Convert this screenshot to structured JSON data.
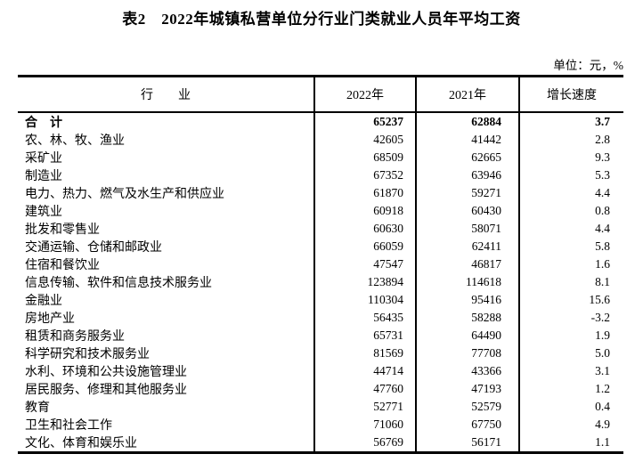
{
  "title": "表2　2022年城镇私营单位分行业门类就业人员年平均工资",
  "unit_note": "单位：元，%",
  "colors": {
    "text": "#000000",
    "border": "#000000",
    "background": "#ffffff"
  },
  "table": {
    "columns": [
      "行　　业",
      "2022年",
      "2021年",
      "增长速度"
    ],
    "rows": [
      {
        "industry": "合　计",
        "v2022": "65237",
        "v2021": "62884",
        "growth": "3.7",
        "bold": true
      },
      {
        "industry": "农、林、牧、渔业",
        "v2022": "42605",
        "v2021": "41442",
        "growth": "2.8",
        "bold": false
      },
      {
        "industry": "采矿业",
        "v2022": "68509",
        "v2021": "62665",
        "growth": "9.3",
        "bold": false
      },
      {
        "industry": "制造业",
        "v2022": "67352",
        "v2021": "63946",
        "growth": "5.3",
        "bold": false
      },
      {
        "industry": "电力、热力、燃气及水生产和供应业",
        "v2022": "61870",
        "v2021": "59271",
        "growth": "4.4",
        "bold": false
      },
      {
        "industry": "建筑业",
        "v2022": "60918",
        "v2021": "60430",
        "growth": "0.8",
        "bold": false
      },
      {
        "industry": "批发和零售业",
        "v2022": "60630",
        "v2021": "58071",
        "growth": "4.4",
        "bold": false
      },
      {
        "industry": "交通运输、仓储和邮政业",
        "v2022": "66059",
        "v2021": "62411",
        "growth": "5.8",
        "bold": false
      },
      {
        "industry": "住宿和餐饮业",
        "v2022": "47547",
        "v2021": "46817",
        "growth": "1.6",
        "bold": false
      },
      {
        "industry": "信息传输、软件和信息技术服务业",
        "v2022": "123894",
        "v2021": "114618",
        "growth": "8.1",
        "bold": false
      },
      {
        "industry": "金融业",
        "v2022": "110304",
        "v2021": "95416",
        "growth": "15.6",
        "bold": false
      },
      {
        "industry": "房地产业",
        "v2022": "56435",
        "v2021": "58288",
        "growth": "-3.2",
        "bold": false
      },
      {
        "industry": "租赁和商务服务业",
        "v2022": "65731",
        "v2021": "64490",
        "growth": "1.9",
        "bold": false
      },
      {
        "industry": "科学研究和技术服务业",
        "v2022": "81569",
        "v2021": "77708",
        "growth": "5.0",
        "bold": false
      },
      {
        "industry": "水利、环境和公共设施管理业",
        "v2022": "44714",
        "v2021": "43366",
        "growth": "3.1",
        "bold": false
      },
      {
        "industry": "居民服务、修理和其他服务业",
        "v2022": "47760",
        "v2021": "47193",
        "growth": "1.2",
        "bold": false
      },
      {
        "industry": "教育",
        "v2022": "52771",
        "v2021": "52579",
        "growth": "0.4",
        "bold": false
      },
      {
        "industry": "卫生和社会工作",
        "v2022": "71060",
        "v2021": "67750",
        "growth": "4.9",
        "bold": false
      },
      {
        "industry": "文化、体育和娱乐业",
        "v2022": "56769",
        "v2021": "56171",
        "growth": "1.1",
        "bold": false
      }
    ]
  }
}
